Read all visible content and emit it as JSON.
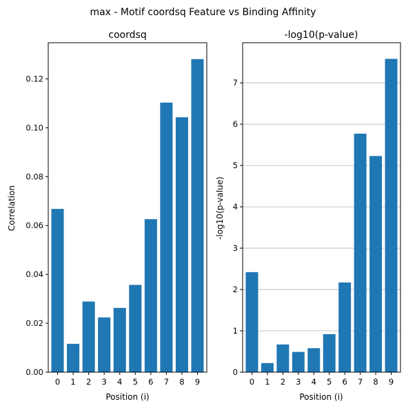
{
  "figure": {
    "suptitle": "max - Motif coordsq Feature vs Binding Affinity"
  },
  "colors": {
    "bar": "#1f77b4",
    "grid": "#b0b0b0",
    "axis": "#000000"
  },
  "chart_data": [
    {
      "type": "bar",
      "title": "coordsq",
      "xlabel": "Position (i)",
      "ylabel": "Correlation",
      "categories": [
        "0",
        "1",
        "2",
        "3",
        "4",
        "5",
        "6",
        "7",
        "8",
        "9"
      ],
      "values": [
        0.0668,
        0.0116,
        0.0289,
        0.0224,
        0.0263,
        0.0357,
        0.0626,
        0.1103,
        0.1043,
        0.1281
      ],
      "ylim": [
        0,
        0.1348
      ],
      "yticks": [
        0.0,
        0.02,
        0.04,
        0.06,
        0.08,
        0.1,
        0.12
      ],
      "ytick_labels": [
        "0.00",
        "0.02",
        "0.04",
        "0.06",
        "0.08",
        "0.10",
        "0.12"
      ],
      "grid": false
    },
    {
      "type": "bar",
      "title": "-log10(p-value)",
      "xlabel": "Position (i)",
      "ylabel": "-log10(p-value)",
      "categories": [
        "0",
        "1",
        "2",
        "3",
        "4",
        "5",
        "6",
        "7",
        "8",
        "9"
      ],
      "values": [
        2.42,
        0.22,
        0.67,
        0.49,
        0.58,
        0.92,
        2.17,
        5.77,
        5.23,
        7.58
      ],
      "ylim": [
        0,
        7.97
      ],
      "yticks": [
        0,
        1,
        2,
        3,
        4,
        5,
        6,
        7
      ],
      "ytick_labels": [
        "0",
        "1",
        "2",
        "3",
        "4",
        "5",
        "6",
        "7"
      ],
      "grid": true,
      "grid_axis": "y"
    }
  ]
}
